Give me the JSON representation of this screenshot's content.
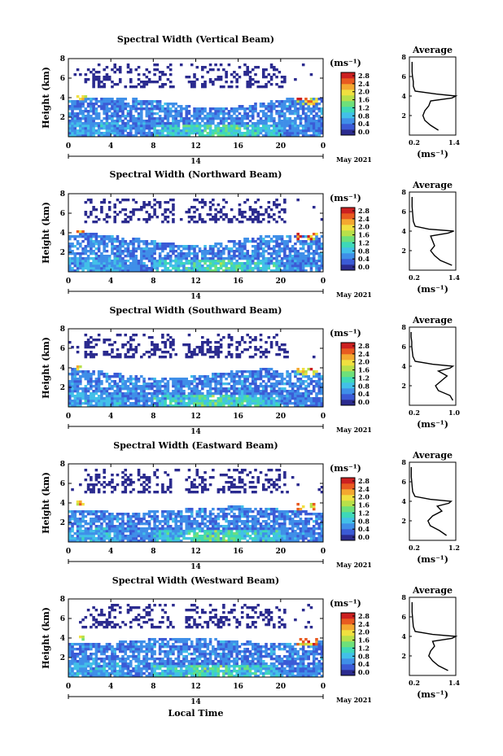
{
  "figure": {
    "xlabel": "Local Time",
    "date_label": "May 2021",
    "day_label": "14",
    "colorbar": {
      "unit": "(ms⁻¹)",
      "ticks": [
        "2.8",
        "2.4",
        "2.0",
        "1.6",
        "1.2",
        "0.8",
        "0.4",
        "0.0"
      ],
      "colors": [
        "#2b2b8f",
        "#3b5bd6",
        "#3f8fe8",
        "#42c0e8",
        "#3ed8b8",
        "#6ee07a",
        "#b8e04a",
        "#f0e040",
        "#f4a830",
        "#e85a20",
        "#cc2020"
      ]
    }
  },
  "chart_data": [
    {
      "type": "heatmap",
      "title": "Spectral Width (Vertical Beam)",
      "ylabel": "Height (km)",
      "x_ticks": [
        "0",
        "4",
        "8",
        "12",
        "16",
        "20",
        "0"
      ],
      "y_ticks": [
        "8",
        "6",
        "4",
        "2"
      ],
      "xlim": [
        0,
        24
      ],
      "ylim": [
        0,
        8
      ],
      "profile": {
        "title": "Average",
        "x_ticks": [
          "0.2",
          "1.4"
        ],
        "y_ticks": [
          "8",
          "6",
          "4",
          "2"
        ],
        "xlim": [
          0.2,
          1.4
        ],
        "ylim": [
          0,
          8
        ],
        "xlabel": "(ms⁻¹)",
        "height": [
          0.5,
          1.0,
          1.5,
          2.0,
          2.5,
          3.0,
          3.5,
          3.8,
          4.0,
          4.2,
          4.5,
          5.0,
          5.5,
          6.0,
          6.5,
          7.0,
          7.5
        ],
        "width": [
          0.95,
          0.75,
          0.6,
          0.55,
          0.6,
          0.7,
          0.75,
          1.3,
          1.4,
          0.9,
          0.35,
          0.3,
          0.3,
          0.28,
          0.27,
          0.27,
          0.27
        ]
      }
    },
    {
      "type": "heatmap",
      "title": "Spectral Width (Northward Beam)",
      "ylabel": "Height (km)",
      "x_ticks": [
        "0",
        "4",
        "8",
        "12",
        "16",
        "20",
        "0"
      ],
      "y_ticks": [
        "8",
        "6",
        "4",
        "2"
      ],
      "xlim": [
        0,
        24
      ],
      "ylim": [
        0,
        8
      ],
      "profile": {
        "title": "Average",
        "x_ticks": [
          "0.2",
          "1.4"
        ],
        "y_ticks": [
          "8",
          "6",
          "4",
          "2"
        ],
        "xlim": [
          0.2,
          1.4
        ],
        "ylim": [
          0,
          8
        ],
        "xlabel": "(ms⁻¹)",
        "height": [
          0.5,
          1.0,
          1.5,
          2.0,
          2.5,
          3.0,
          3.5,
          3.8,
          4.0,
          4.2,
          4.5,
          5.0,
          5.5,
          6.0,
          6.5,
          7.0,
          7.5
        ],
        "width": [
          1.3,
          1.0,
          0.85,
          0.75,
          0.85,
          0.8,
          0.75,
          1.2,
          1.35,
          0.7,
          0.35,
          0.3,
          0.29,
          0.28,
          0.27,
          0.27,
          0.27
        ]
      }
    },
    {
      "type": "heatmap",
      "title": "Spectral Width (Southward Beam)",
      "ylabel": "Height (km)",
      "x_ticks": [
        "0",
        "4",
        "8",
        "12",
        "16",
        "20",
        "0"
      ],
      "y_ticks": [
        "8",
        "6",
        "4",
        "2"
      ],
      "xlim": [
        0,
        24
      ],
      "ylim": [
        0,
        8
      ],
      "profile": {
        "title": "Average",
        "x_ticks": [
          "0.2",
          "1.0"
        ],
        "y_ticks": [
          "8",
          "6",
          "4",
          "2"
        ],
        "xlim": [
          0.2,
          1.0
        ],
        "ylim": [
          0,
          8
        ],
        "xlabel": "(ms⁻¹)",
        "height": [
          0.5,
          1.0,
          1.5,
          2.0,
          2.5,
          3.0,
          3.5,
          3.8,
          4.0,
          4.2,
          4.5,
          5.0,
          5.5,
          6.0,
          6.5,
          7.0,
          7.5
        ],
        "width": [
          0.95,
          0.9,
          0.7,
          0.65,
          0.75,
          0.85,
          0.7,
          0.9,
          0.95,
          0.6,
          0.3,
          0.26,
          0.25,
          0.24,
          0.24,
          0.23,
          0.23
        ]
      }
    },
    {
      "type": "heatmap",
      "title": "Spectral Width (Eastward Beam)",
      "ylabel": "Height (km)",
      "x_ticks": [
        "0",
        "4",
        "8",
        "12",
        "16",
        "20",
        "0"
      ],
      "y_ticks": [
        "8",
        "6",
        "4",
        "2"
      ],
      "xlim": [
        0,
        24
      ],
      "ylim": [
        0,
        8
      ],
      "profile": {
        "title": "Average",
        "x_ticks": [
          "0.2",
          "1.2"
        ],
        "y_ticks": [
          "8",
          "6",
          "4",
          "2"
        ],
        "xlim": [
          0.2,
          1.2
        ],
        "ylim": [
          0,
          8
        ],
        "xlabel": "(ms⁻¹)",
        "height": [
          0.5,
          1.0,
          1.5,
          2.0,
          2.5,
          3.0,
          3.5,
          3.8,
          4.0,
          4.2,
          4.5,
          5.0,
          5.5,
          6.0,
          6.5,
          7.0,
          7.5
        ],
        "width": [
          1.0,
          0.85,
          0.65,
          0.6,
          0.7,
          0.9,
          0.8,
          1.05,
          1.1,
          0.65,
          0.32,
          0.27,
          0.26,
          0.25,
          0.24,
          0.24,
          0.24
        ]
      }
    },
    {
      "type": "heatmap",
      "title": "Spectral Width (Westward Beam)",
      "ylabel": "Height (km)",
      "x_ticks": [
        "0",
        "4",
        "8",
        "12",
        "16",
        "20",
        "0"
      ],
      "y_ticks": [
        "8",
        "6",
        "4",
        "2"
      ],
      "xlim": [
        0,
        24
      ],
      "ylim": [
        0,
        8
      ],
      "profile": {
        "title": "Average",
        "x_ticks": [
          "0.2",
          "1.4"
        ],
        "y_ticks": [
          "8",
          "6",
          "4",
          "2"
        ],
        "xlim": [
          0.2,
          1.4
        ],
        "ylim": [
          0,
          8
        ],
        "xlabel": "(ms⁻¹)",
        "height": [
          0.5,
          1.0,
          1.5,
          2.0,
          2.5,
          3.0,
          3.5,
          3.8,
          4.0,
          4.2,
          4.5,
          5.0,
          5.5,
          6.0,
          6.5,
          7.0,
          7.5
        ],
        "width": [
          1.2,
          0.95,
          0.8,
          0.7,
          0.75,
          0.85,
          0.8,
          1.3,
          1.4,
          0.8,
          0.35,
          0.3,
          0.29,
          0.28,
          0.27,
          0.27,
          0.27
        ]
      }
    }
  ]
}
